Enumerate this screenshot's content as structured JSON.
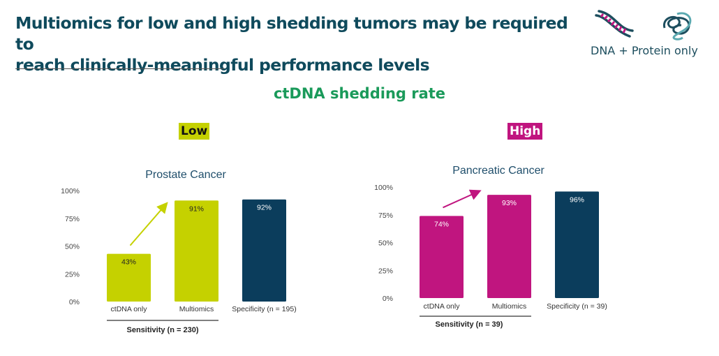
{
  "header": {
    "title_line1": "Multiomics for low and high shedding tumors may be required to",
    "title_line2": "reach clinically-meaningful performance levels",
    "legend_label": "DNA + Protein only",
    "icons": [
      "dna-icon",
      "protein-icon"
    ]
  },
  "section_title": "ctDNA shedding rate",
  "tags": {
    "low": "Low",
    "high": "High"
  },
  "colors": {
    "lime": "#c5d100",
    "magenta": "#c0157f",
    "navy": "#0b3d5c",
    "title": "#0f4a5c",
    "green": "#1a9a5a"
  },
  "chart_data": [
    {
      "type": "bar",
      "title": "Prostate Cancer",
      "categories": [
        "ctDNA only",
        "Multiomics",
        "Specificity (n = 195)"
      ],
      "values": [
        43,
        91,
        92
      ],
      "value_labels": [
        "43%",
        "91%",
        "92%"
      ],
      "colors": [
        "#c5d100",
        "#c5d100",
        "#0b3d5c"
      ],
      "label_colors": [
        "#222",
        "#222",
        "#fff"
      ],
      "yticks": [
        "0%",
        "25%",
        "50%",
        "75%",
        "100%"
      ],
      "ylim": [
        0,
        100
      ],
      "group_label": "Sensitivity (n = 230)",
      "arrow_color": "#c5d100",
      "xlabel": "",
      "ylabel": "",
      "grid": false
    },
    {
      "type": "bar",
      "title": "Pancreatic Cancer",
      "categories": [
        "ctDNA only",
        "Multiomics",
        "Specificity (n = 39)"
      ],
      "values": [
        74,
        93,
        96
      ],
      "value_labels": [
        "74%",
        "93%",
        "96%"
      ],
      "colors": [
        "#c0157f",
        "#c0157f",
        "#0b3d5c"
      ],
      "label_colors": [
        "#fff",
        "#fff",
        "#fff"
      ],
      "yticks": [
        "0%",
        "25%",
        "50%",
        "75%",
        "100%"
      ],
      "ylim": [
        0,
        100
      ],
      "group_label": "Sensitivity (n = 39)",
      "arrow_color": "#c0157f",
      "xlabel": "",
      "ylabel": "",
      "grid": false
    }
  ]
}
